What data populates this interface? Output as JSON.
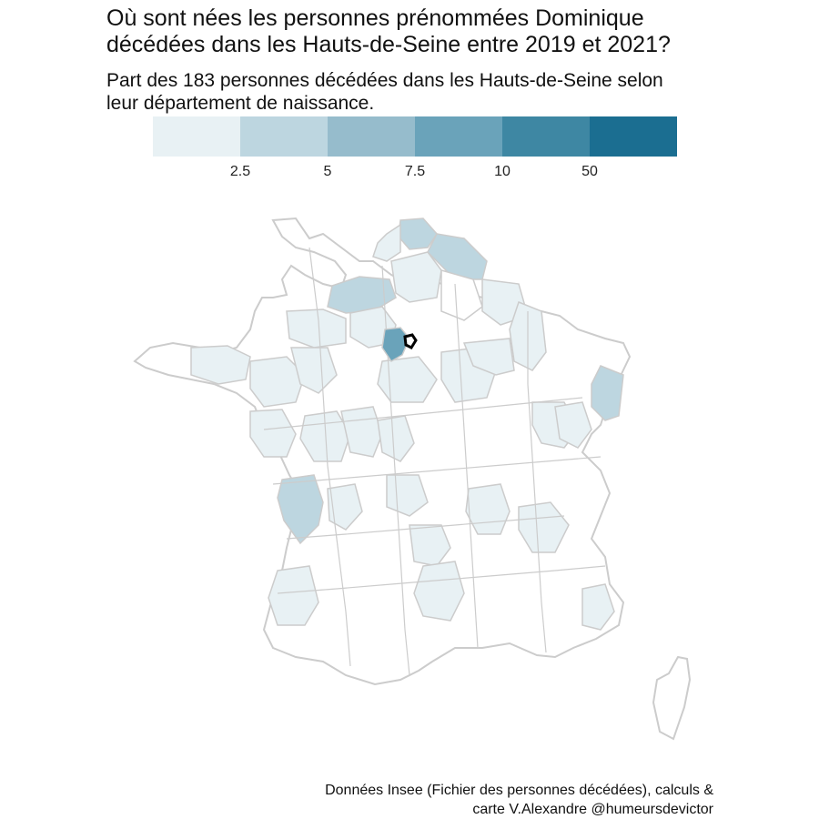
{
  "title": {
    "line1": "Où sont nées les personnes prénommées Dominique",
    "line2": "décédées dans les Hauts-de-Seine entre 2019 et 2021?"
  },
  "subtitle": {
    "line1": "Part des 183 personnes décédées dans les Hauts-de-Seine selon",
    "line2": "leur département de naissance."
  },
  "legend": {
    "bins": [
      "#e8f1f4",
      "#bdd6e0",
      "#96bccc",
      "#6aa3ba",
      "#3e87a3",
      "#1b6e91"
    ],
    "ticks": [
      "2.5",
      "5",
      "7.5",
      "10",
      "50"
    ]
  },
  "map": {
    "border_color": "#cccccc",
    "fill_levels": {
      "none": "#ffffff",
      "low": "#e8f1f4",
      "mid": "#bdd6e0",
      "high": "#6aa3ba"
    },
    "highlighted_department": "Hauts-de-Seine"
  },
  "caption": {
    "line1": "Données Insee (Fichier des personnes décédées), calculs &",
    "line2": "carte V.Alexandre @humeursdevictor"
  }
}
